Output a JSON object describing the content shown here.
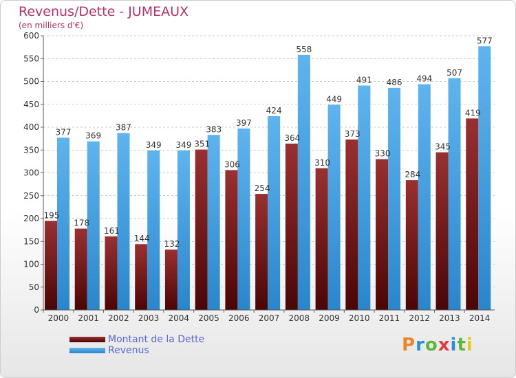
{
  "title": "Revenus/Dette - JUMEAUX",
  "subtitle": "(en milliers d'€)",
  "logo": {
    "text": "Proxiti",
    "colors": [
      "#e8862a",
      "#2a8fd6",
      "#5db83a",
      "#e03c3c",
      "#2a8fd6",
      "#5db83a",
      "#e8c62a"
    ]
  },
  "colors": {
    "dette": "#7a1a1a",
    "revenus": "#4aa6e8",
    "axis_text": "#333333",
    "grid": "#999999"
  },
  "chart_data": {
    "type": "bar",
    "categories": [
      "2000",
      "2001",
      "2002",
      "2003",
      "2004",
      "2005",
      "2006",
      "2007",
      "2008",
      "2009",
      "2010",
      "2011",
      "2012",
      "2013",
      "2014"
    ],
    "series": [
      {
        "name": "Montant de la Dette",
        "values": [
          195,
          178,
          161,
          144,
          132,
          351,
          306,
          254,
          364,
          310,
          373,
          330,
          284,
          345,
          419
        ]
      },
      {
        "name": "Revenus",
        "values": [
          377,
          369,
          387,
          349,
          349,
          383,
          397,
          424,
          558,
          449,
          491,
          486,
          494,
          507,
          577
        ]
      }
    ],
    "ylim": [
      0,
      600
    ],
    "yticks": [
      "0",
      "50",
      "100",
      "150",
      "200",
      "250",
      "300",
      "350",
      "400",
      "450",
      "500",
      "550",
      "600"
    ],
    "grid": "horizontal dashed",
    "legend": "bottom-left"
  }
}
